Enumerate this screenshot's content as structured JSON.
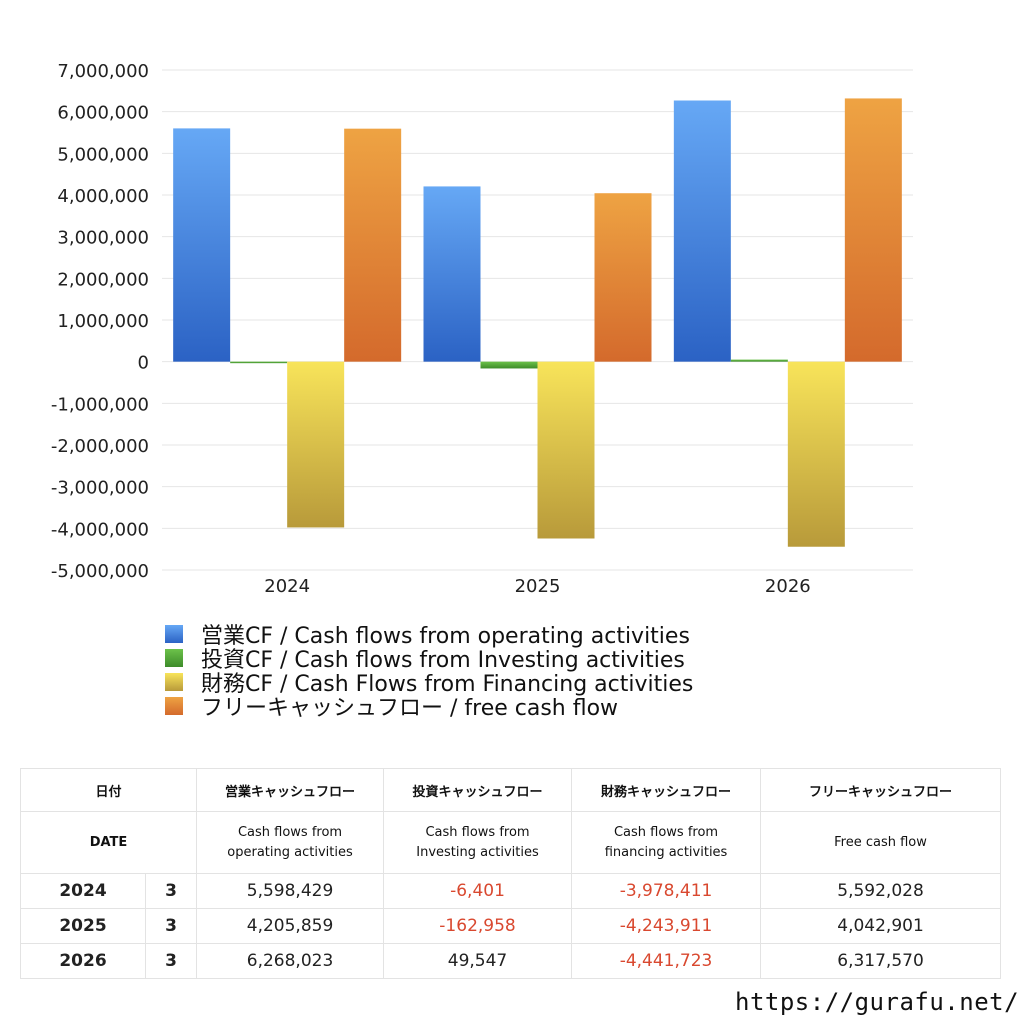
{
  "chart_data": {
    "type": "bar",
    "categories": [
      "2024",
      "2025",
      "2026"
    ],
    "ylim": [
      -5000000,
      7000000
    ],
    "yticks": [
      "7,000,000",
      "6,000,000",
      "5,000,000",
      "4,000,000",
      "3,000,000",
      "2,000,000",
      "1,000,000",
      "0",
      "-1,000,000",
      "-2,000,000",
      "-3,000,000",
      "-4,000,000",
      "-5,000,000"
    ],
    "grid": true,
    "legend_position": "bottom",
    "series": [
      {
        "name": "営業CF / Cash flows from operating activities",
        "values": [
          5598429,
          4205859,
          6268023
        ],
        "color_top": "#66a8f5",
        "color_bottom": "#2b62c4"
      },
      {
        "name": "投資CF / Cash flows from Investing activities",
        "values": [
          -6401,
          -162958,
          49547
        ],
        "color_top": "#6cc24a",
        "color_bottom": "#3d8b2a"
      },
      {
        "name": "財務CF / Cash Flows from Financing activities",
        "values": [
          -3978411,
          -4243911,
          -4441723
        ],
        "color_top": "#f8e45a",
        "color_bottom": "#b89a3a"
      },
      {
        "name": "フリーキャッシュフロー / free cash flow",
        "values": [
          5592028,
          4042901,
          6317570
        ],
        "color_top": "#eea343",
        "color_bottom": "#d46a2c"
      }
    ]
  },
  "table": {
    "headers": [
      "日付",
      "営業キャッシュフロー",
      "投資キャッシュフロー",
      "財務キャッシュフロー",
      "フリーキャッシュフロー"
    ],
    "subheaders": [
      "DATE",
      "Cash flows from\noperating activities",
      "Cash flows from\nInvesting activities",
      "Cash flows from\nfinancing activities",
      "Free cash flow"
    ],
    "rows": [
      {
        "year": "2024",
        "month": "3",
        "operating": "5,598,429",
        "investing": "-6,401",
        "financing": "-3,978,411",
        "free": "5,592,028"
      },
      {
        "year": "2025",
        "month": "3",
        "operating": "4,205,859",
        "investing": "-162,958",
        "financing": "-4,243,911",
        "free": "4,042,901"
      },
      {
        "year": "2026",
        "month": "3",
        "operating": "6,268,023",
        "investing": "49,547",
        "financing": "-4,441,723",
        "free": "6,317,570"
      }
    ],
    "negative_color": "#d9482f"
  },
  "footer": {
    "url": "https://gurafu.net/"
  }
}
